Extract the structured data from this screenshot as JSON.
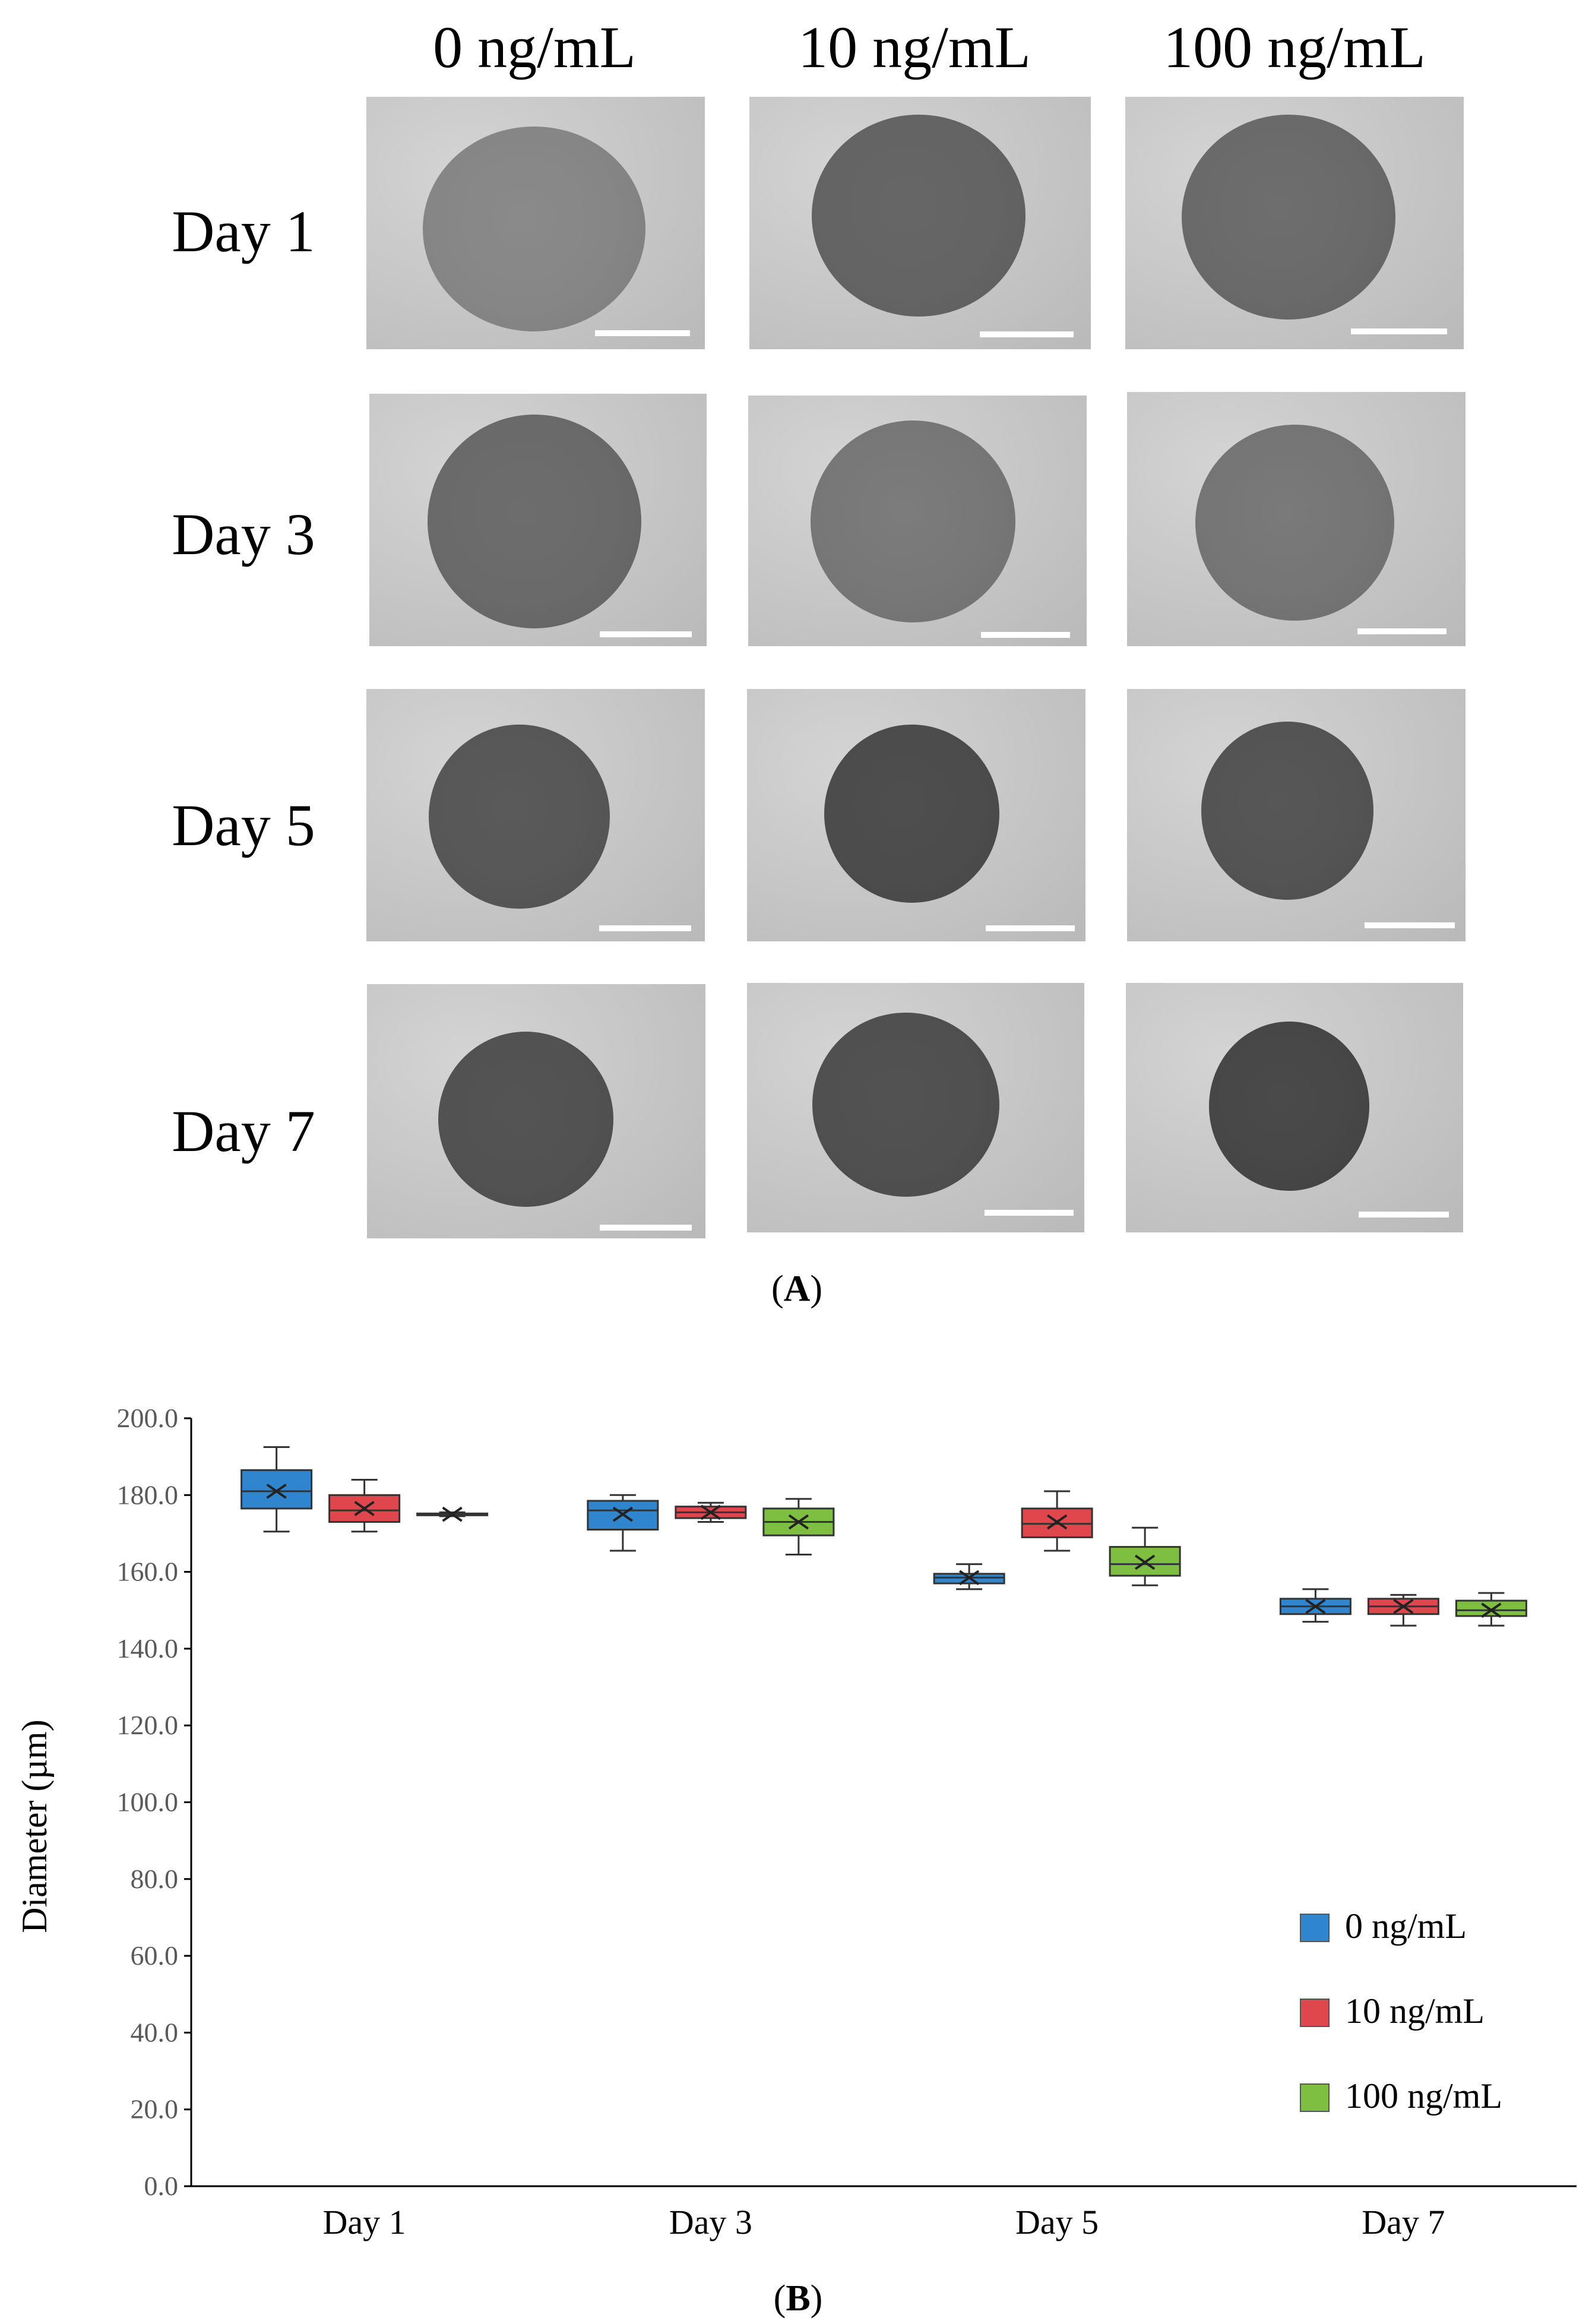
{
  "panel_a": {
    "columns": [
      "0 ng/mL",
      "10 ng/mL",
      "100 ng/mL"
    ],
    "rows": [
      "Day 1",
      "Day 3",
      "Day 5",
      "Day 7"
    ],
    "label_open": "(",
    "label_letter": "A",
    "label_close": ")"
  },
  "panel_b": {
    "label_open": "(",
    "label_letter": "B",
    "label_close": ")"
  },
  "colors": {
    "0 ng/mL": "#2f86cf",
    "10 ng/mL": "#e0474c",
    "100 ng/mL": "#7ebf42"
  },
  "chart_data": {
    "type": "box",
    "title": "",
    "ylabel": "Diameter (µm)",
    "xlabel": "",
    "ylim": [
      0,
      200
    ],
    "ytick_step": 20,
    "ytick_decimals": 1,
    "categories": [
      "Day 1",
      "Day 3",
      "Day 5",
      "Day 7"
    ],
    "legend_position": "right",
    "grid": false,
    "series": [
      {
        "name": "0 ng/mL",
        "color": "#2f86cf",
        "boxes": [
          {
            "min": 170.5,
            "q1": 176.5,
            "median": 181.0,
            "q3": 186.5,
            "max": 192.5,
            "mean": 181.0
          },
          {
            "min": 165.5,
            "q1": 171.0,
            "median": 176.0,
            "q3": 178.5,
            "max": 180.0,
            "mean": 175.0
          },
          {
            "min": 155.5,
            "q1": 157.0,
            "median": 158.5,
            "q3": 159.5,
            "max": 162.0,
            "mean": 158.5
          },
          {
            "min": 147.0,
            "q1": 149.0,
            "median": 151.0,
            "q3": 153.0,
            "max": 155.5,
            "mean": 151.0
          }
        ]
      },
      {
        "name": "10 ng/mL",
        "color": "#e0474c",
        "boxes": [
          {
            "min": 170.5,
            "q1": 173.0,
            "median": 176.0,
            "q3": 180.0,
            "max": 184.0,
            "mean": 176.5
          },
          {
            "min": 173.0,
            "q1": 174.0,
            "median": 175.5,
            "q3": 177.0,
            "max": 178.0,
            "mean": 175.5
          },
          {
            "min": 165.5,
            "q1": 169.0,
            "median": 172.5,
            "q3": 176.5,
            "max": 181.0,
            "mean": 173.0
          },
          {
            "min": 146.0,
            "q1": 149.0,
            "median": 151.0,
            "q3": 153.0,
            "max": 154.0,
            "mean": 151.0
          }
        ]
      },
      {
        "name": "100 ng/mL",
        "color": "#7ebf42",
        "boxes": [
          {
            "min": 174.5,
            "q1": 174.8,
            "median": 175.0,
            "q3": 175.2,
            "max": 175.5,
            "mean": 175.0
          },
          {
            "min": 164.5,
            "q1": 169.5,
            "median": 173.0,
            "q3": 176.5,
            "max": 179.0,
            "mean": 173.0
          },
          {
            "min": 156.5,
            "q1": 159.0,
            "median": 162.0,
            "q3": 166.5,
            "max": 171.5,
            "mean": 162.5
          },
          {
            "min": 146.0,
            "q1": 148.5,
            "median": 150.0,
            "q3": 152.5,
            "max": 154.5,
            "mean": 150.0
          }
        ]
      }
    ]
  }
}
